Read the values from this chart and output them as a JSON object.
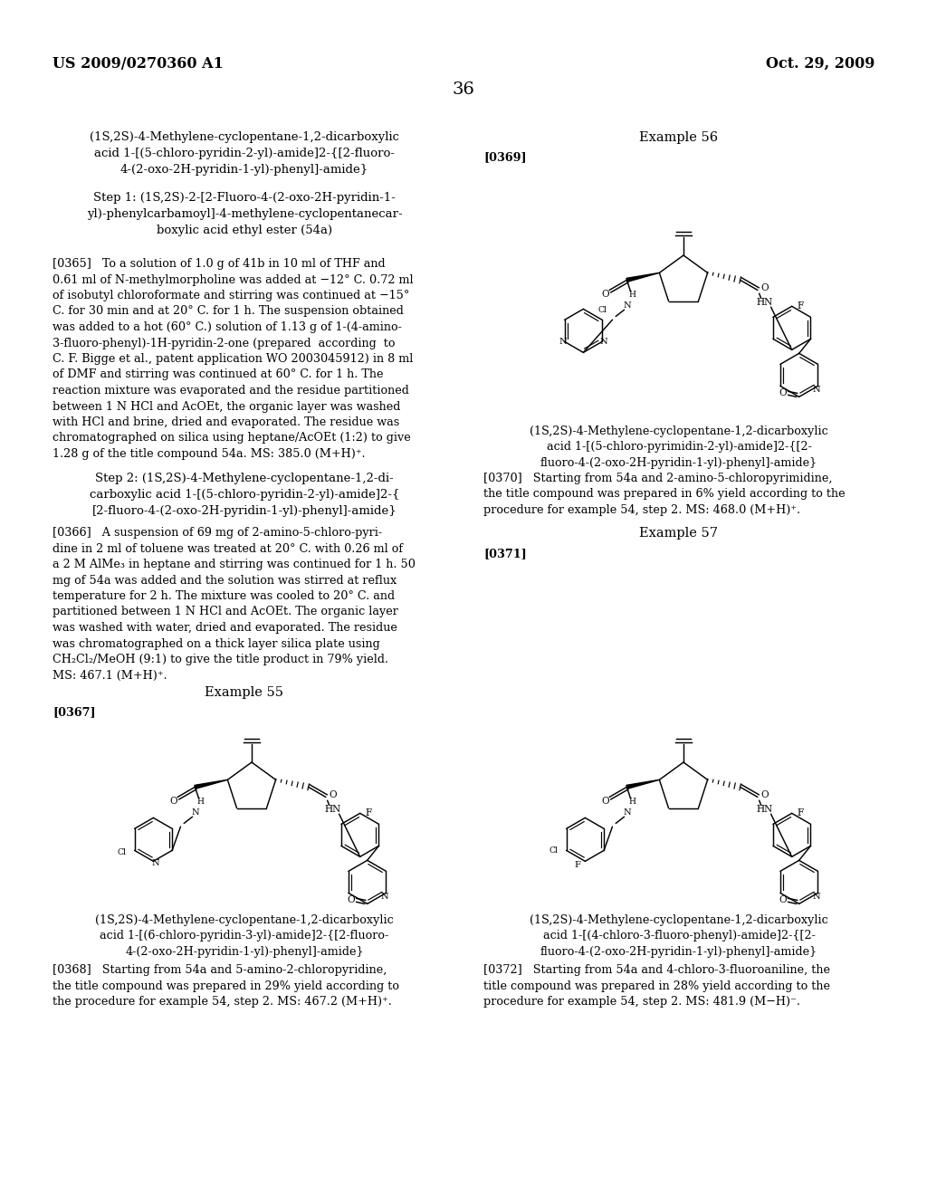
{
  "background_color": "#ffffff",
  "page_number": "36",
  "header_left": "US 2009/0270360 A1",
  "header_right": "Oct. 29, 2009",
  "left_col_title": "(1S,2S)-4-Methylene-cyclopentane-1,2-dicarboxylic\nacid 1-[(5-chloro-pyridin-2-yl)-amide]2-{[2-fluoro-\n4-(2-oxo-2H-pyridin-1-yl)-phenyl]-amide}",
  "step1_title": "Step 1: (1S,2S)-2-[2-Fluoro-4-(2-oxo-2H-pyridin-1-\nyl)-phenylcarbamoyl]-4-methylene-cyclopentanecar-\nboxylic acid ethyl ester (54a)",
  "para0365": "[0365]   To a solution of 1.0 g of 41b in 10 ml of THF and\n0.61 ml of N-methylmorpholine was added at −12° C. 0.72 ml\nof isobutyl chloroformate and stirring was continued at −15°\nC. for 30 min and at 20° C. for 1 h. The suspension obtained\nwas added to a hot (60° C.) solution of 1.13 g of 1-(4-amino-\n3-fluoro-phenyl)-1H-pyridin-2-one (prepared  according  to\nC. F. Bigge et al., patent application WO 2003045912) in 8 ml\nof DMF and stirring was continued at 60° C. for 1 h. The\nreaction mixture was evaporated and the residue partitioned\nbetween 1 N HCl and AcOEt, the organic layer was washed\nwith HCl and brine, dried and evaporated. The residue was\nchromatographed on silica using heptane/AcOEt (1:2) to give\n1.28 g of the title compound 54a. MS: 385.0 (M+H)⁺.",
  "step2_title": "Step 2: (1S,2S)-4-Methylene-cyclopentane-1,2-di-\ncarboxylic acid 1-[(5-chloro-pyridin-2-yl)-amide]2-{\n[2-fluoro-4-(2-oxo-2H-pyridin-1-yl)-phenyl]-amide}",
  "para0366": "[0366]   A suspension of 69 mg of 2-amino-5-chloro-pyri-\ndine in 2 ml of toluene was treated at 20° C. with 0.26 ml of\na 2 M AlMe₃ in heptane and stirring was continued for 1 h. 50\nmg of 54a was added and the solution was stirred at reflux\ntemperature for 2 h. The mixture was cooled to 20° C. and\npartitioned between 1 N HCl and AcOEt. The organic layer\nwas washed with water, dried and evaporated. The residue\nwas chromatographed on a thick layer silica plate using\nCH₂Cl₂/MeOH (9:1) to give the title product in 79% yield.\nMS: 467.1 (M+H)⁺.",
  "example55_label": "Example 55",
  "para0367_label": "[0367]",
  "mol55_caption": "(1S,2S)-4-Methylene-cyclopentane-1,2-dicarboxylic\nacid 1-[(6-chloro-pyridin-3-yl)-amide]2-{[2-fluoro-\n4-(2-oxo-2H-pyridin-1-yl)-phenyl]-amide}",
  "para0368": "[0368]   Starting from 54a and 5-amino-2-chloropyridine,\nthe title compound was prepared in 29% yield according to\nthe procedure for example 54, step 2. MS: 467.2 (M+H)⁺.",
  "example56_label": "Example 56",
  "para0369_label": "[0369]",
  "mol56_caption": "(1S,2S)-4-Methylene-cyclopentane-1,2-dicarboxylic\nacid 1-[(5-chloro-pyrimidin-2-yl)-amide]2-{[2-\nfluoro-4-(2-oxo-2H-pyridin-1-yl)-phenyl]-amide}",
  "para0370": "[0370]   Starting from 54a and 2-amino-5-chloropyrimidine,\nthe title compound was prepared in 6% yield according to the\nprocedure for example 54, step 2. MS: 468.0 (M+H)⁺.",
  "example57_label": "Example 57",
  "para0371_label": "[0371]",
  "mol57_caption": "(1S,2S)-4-Methylene-cyclopentane-1,2-dicarboxylic\nacid 1-[(4-chloro-3-fluoro-phenyl)-amide]2-{[2-\nfluoro-4-(2-oxo-2H-pyridin-1-yl)-phenyl]-amide}",
  "para0372": "[0372]   Starting from 54a and 4-chloro-3-fluoroaniline, the\ntitle compound was prepared in 28% yield according to the\nprocedure for example 54, step 2. MS: 481.9 (M−H)⁻."
}
